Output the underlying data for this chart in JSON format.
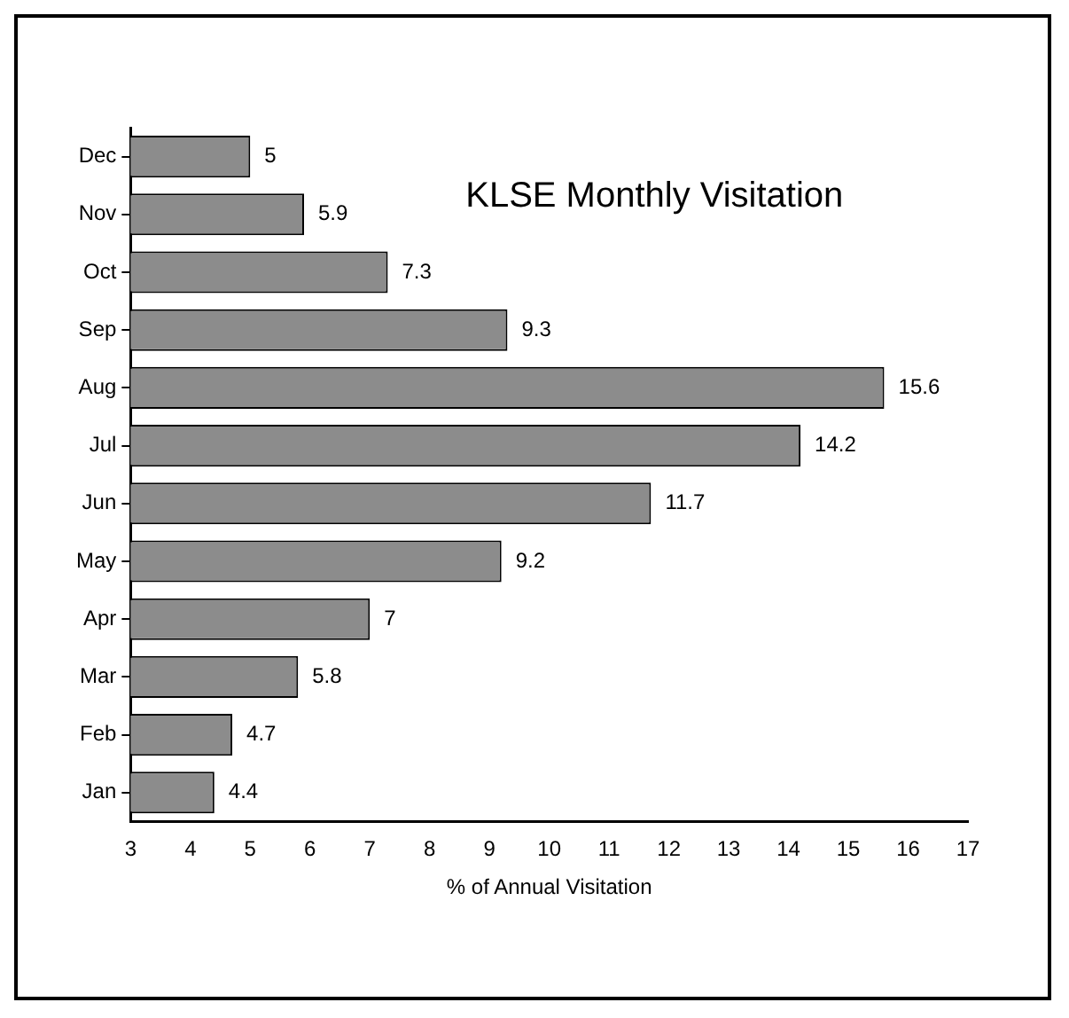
{
  "chart_data": {
    "type": "bar",
    "orientation": "horizontal",
    "title": "KLSE Monthly Visitation",
    "xlabel": "% of Annual Visitation",
    "categories": [
      "Dec",
      "Nov",
      "Oct",
      "Sep",
      "Aug",
      "Jul",
      "Jun",
      "May",
      "Apr",
      "Mar",
      "Feb",
      "Jan"
    ],
    "values": [
      5,
      5.9,
      7.3,
      9.3,
      15.6,
      14.2,
      11.7,
      9.2,
      7,
      5.8,
      4.7,
      4.4
    ],
    "color": "#8c8c8c",
    "xlim": [
      3,
      17
    ],
    "xticks": [
      3,
      4,
      5,
      6,
      7,
      8,
      9,
      10,
      11,
      12,
      13,
      14,
      15,
      16,
      17
    ],
    "grid": false,
    "legend": false,
    "data_labels": true
  }
}
